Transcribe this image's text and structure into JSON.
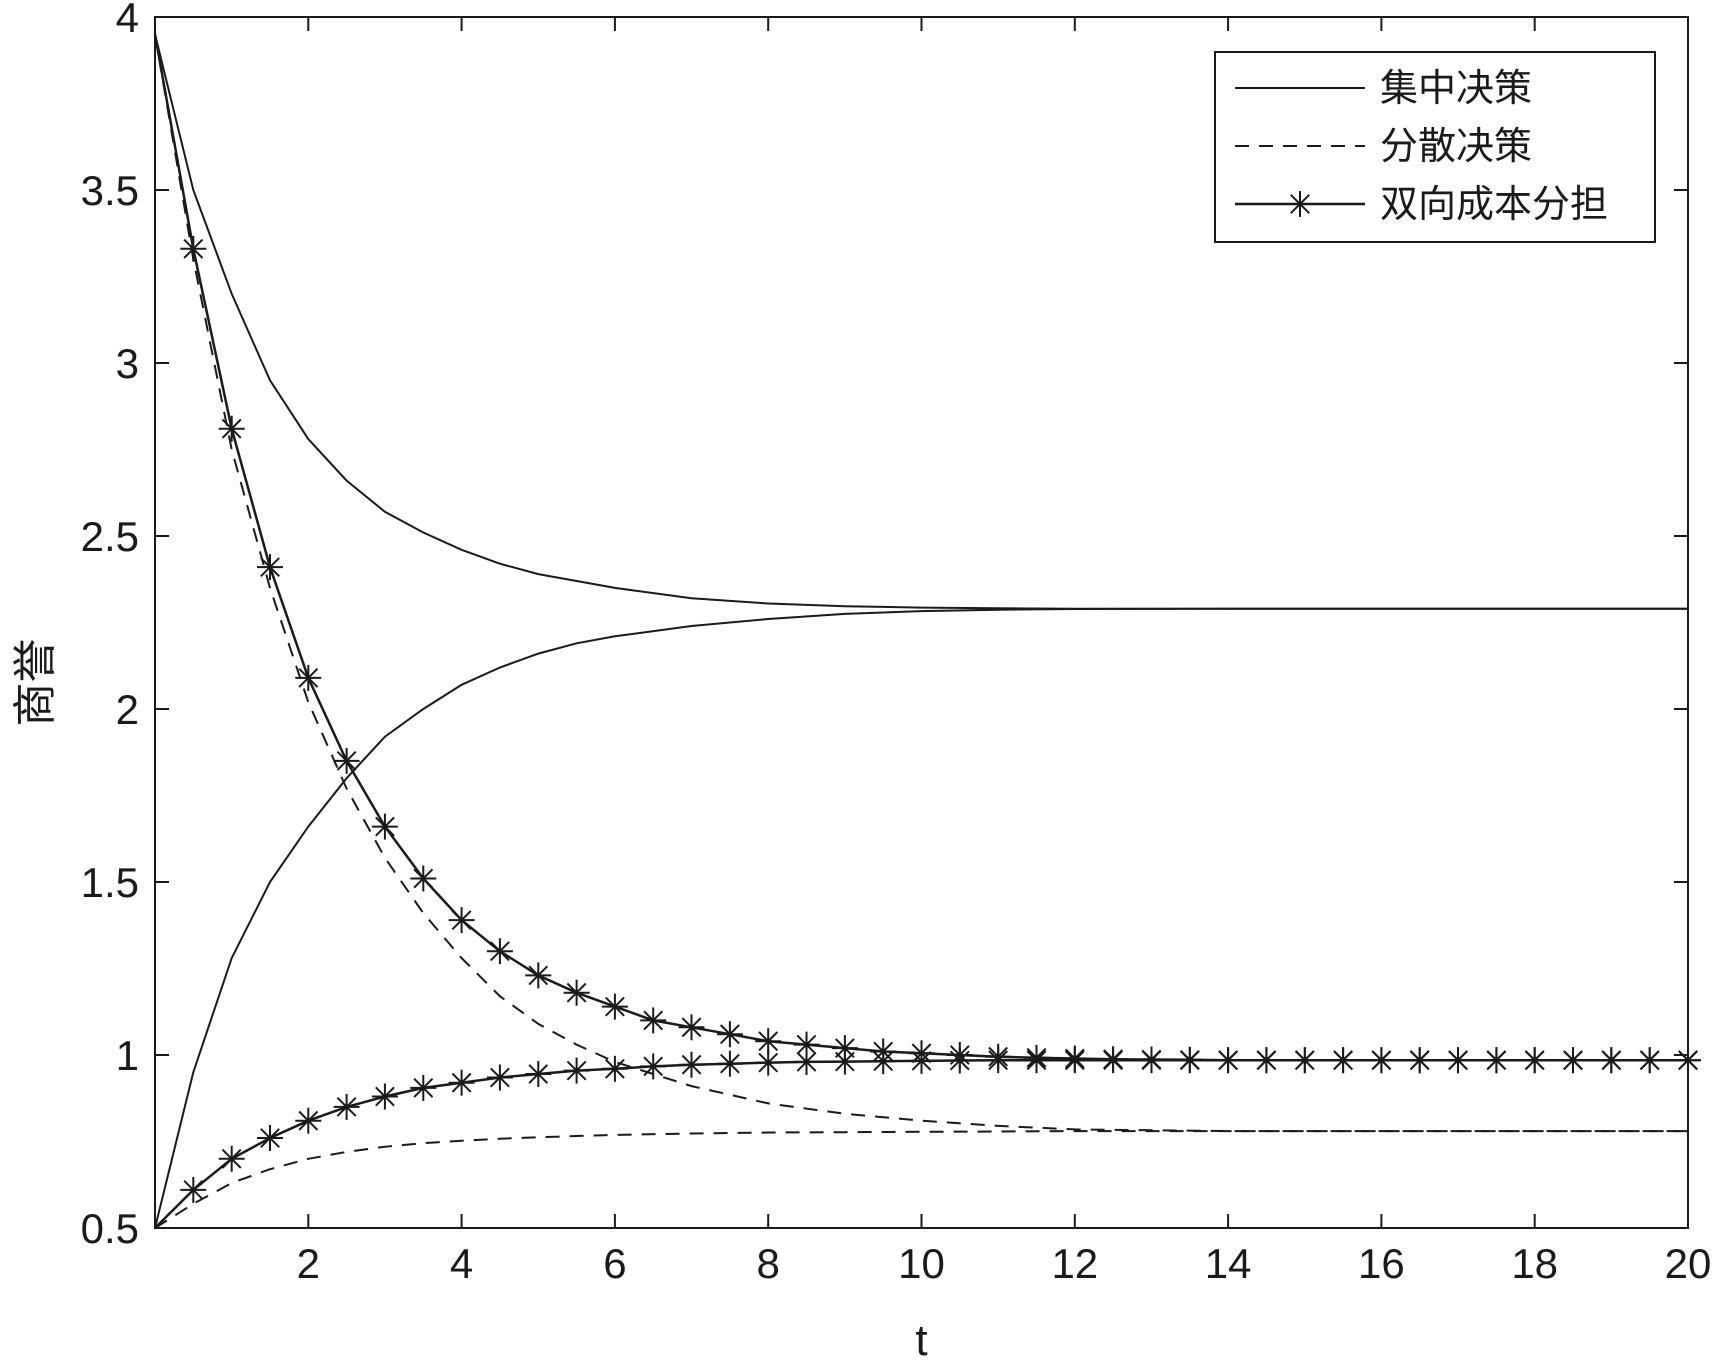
{
  "chart_data": {
    "type": "line",
    "title": "",
    "xlabel": "t",
    "ylabel": "商誉",
    "xlim": [
      0,
      20
    ],
    "ylim": [
      0.5,
      4
    ],
    "xticks": [
      2,
      4,
      6,
      8,
      10,
      12,
      14,
      16,
      18,
      20
    ],
    "yticks": [
      0.5,
      1,
      1.5,
      2,
      2.5,
      3,
      3.5,
      4
    ],
    "grid": false,
    "legend_position": "top-right",
    "legend": [
      {
        "label": "集中决策",
        "style": "solid"
      },
      {
        "label": "分散决策",
        "style": "dashed"
      },
      {
        "label": "双向成本分担",
        "style": "solid-star"
      }
    ],
    "series": [
      {
        "legend_index": 0,
        "style": "solid",
        "x": [
          0,
          0.5,
          1,
          1.5,
          2,
          2.5,
          3,
          3.5,
          4,
          4.5,
          5,
          5.5,
          6,
          7,
          8,
          9,
          10,
          11,
          12,
          14,
          16,
          18,
          20
        ],
        "y": [
          3.95,
          3.5,
          3.2,
          2.95,
          2.78,
          2.66,
          2.57,
          2.51,
          2.46,
          2.42,
          2.39,
          2.37,
          2.35,
          2.32,
          2.305,
          2.297,
          2.293,
          2.291,
          2.29,
          2.29,
          2.29,
          2.29,
          2.29
        ]
      },
      {
        "legend_index": 0,
        "style": "solid",
        "x": [
          0,
          0.5,
          1,
          1.5,
          2,
          2.5,
          3,
          3.5,
          4,
          4.5,
          5,
          5.5,
          6,
          7,
          8,
          9,
          10,
          11,
          12,
          14,
          16,
          18,
          20
        ],
        "y": [
          0.5,
          0.95,
          1.28,
          1.5,
          1.66,
          1.8,
          1.92,
          2.0,
          2.07,
          2.12,
          2.16,
          2.19,
          2.21,
          2.24,
          2.26,
          2.275,
          2.283,
          2.287,
          2.289,
          2.29,
          2.29,
          2.29,
          2.29
        ]
      },
      {
        "legend_index": 1,
        "style": "dashed",
        "x": [
          0,
          0.5,
          1,
          1.5,
          2,
          2.5,
          3,
          3.5,
          4,
          4.5,
          5,
          5.5,
          6,
          7,
          8,
          9,
          10,
          11,
          12,
          14,
          16,
          18,
          20
        ],
        "y": [
          3.95,
          3.3,
          2.75,
          2.35,
          2.02,
          1.77,
          1.57,
          1.41,
          1.28,
          1.17,
          1.09,
          1.03,
          0.98,
          0.91,
          0.86,
          0.83,
          0.81,
          0.795,
          0.785,
          0.78,
          0.78,
          0.78,
          0.78
        ]
      },
      {
        "legend_index": 1,
        "style": "dashed",
        "x": [
          0,
          0.5,
          1,
          1.5,
          2,
          2.5,
          3,
          3.5,
          4,
          4.5,
          5,
          5.5,
          6,
          7,
          8,
          9,
          10,
          11,
          12,
          14,
          16,
          18,
          20
        ],
        "y": [
          0.5,
          0.57,
          0.63,
          0.67,
          0.7,
          0.72,
          0.735,
          0.745,
          0.752,
          0.758,
          0.762,
          0.766,
          0.769,
          0.773,
          0.776,
          0.777,
          0.778,
          0.779,
          0.78,
          0.78,
          0.78,
          0.78,
          0.78
        ]
      },
      {
        "legend_index": 2,
        "style": "solid-star",
        "x": [
          0,
          0.5,
          1,
          1.5,
          2,
          2.5,
          3,
          3.5,
          4,
          4.5,
          5,
          5.5,
          6,
          6.5,
          7,
          7.5,
          8,
          8.5,
          9,
          9.5,
          10,
          10.5,
          11,
          11.5,
          12,
          12.5,
          13,
          13.5,
          14,
          14.5,
          15,
          15.5,
          16,
          16.5,
          17,
          17.5,
          18,
          18.5,
          19,
          19.5,
          20
        ],
        "y": [
          3.95,
          3.33,
          2.81,
          2.41,
          2.09,
          1.85,
          1.66,
          1.51,
          1.39,
          1.3,
          1.23,
          1.18,
          1.14,
          1.1,
          1.08,
          1.06,
          1.04,
          1.03,
          1.02,
          1.01,
          1.005,
          1.0,
          0.995,
          0.992,
          0.99,
          0.988,
          0.987,
          0.986,
          0.985,
          0.985,
          0.985,
          0.985,
          0.985,
          0.985,
          0.985,
          0.985,
          0.985,
          0.985,
          0.985,
          0.985,
          0.985
        ]
      },
      {
        "legend_index": 2,
        "style": "solid-star",
        "x": [
          0,
          0.5,
          1,
          1.5,
          2,
          2.5,
          3,
          3.5,
          4,
          4.5,
          5,
          5.5,
          6,
          6.5,
          7,
          7.5,
          8,
          8.5,
          9,
          9.5,
          10,
          10.5,
          11,
          11.5,
          12,
          12.5,
          13,
          13.5,
          14,
          14.5,
          15,
          15.5,
          16,
          16.5,
          17,
          17.5,
          18,
          18.5,
          19,
          19.5,
          20
        ],
        "y": [
          0.5,
          0.61,
          0.7,
          0.76,
          0.81,
          0.85,
          0.88,
          0.905,
          0.92,
          0.935,
          0.945,
          0.955,
          0.96,
          0.967,
          0.972,
          0.975,
          0.978,
          0.98,
          0.981,
          0.982,
          0.983,
          0.984,
          0.985,
          0.985,
          0.985,
          0.985,
          0.985,
          0.985,
          0.985,
          0.985,
          0.985,
          0.985,
          0.985,
          0.985,
          0.985,
          0.985,
          0.985,
          0.985,
          0.985,
          0.985,
          0.985
        ]
      }
    ]
  }
}
